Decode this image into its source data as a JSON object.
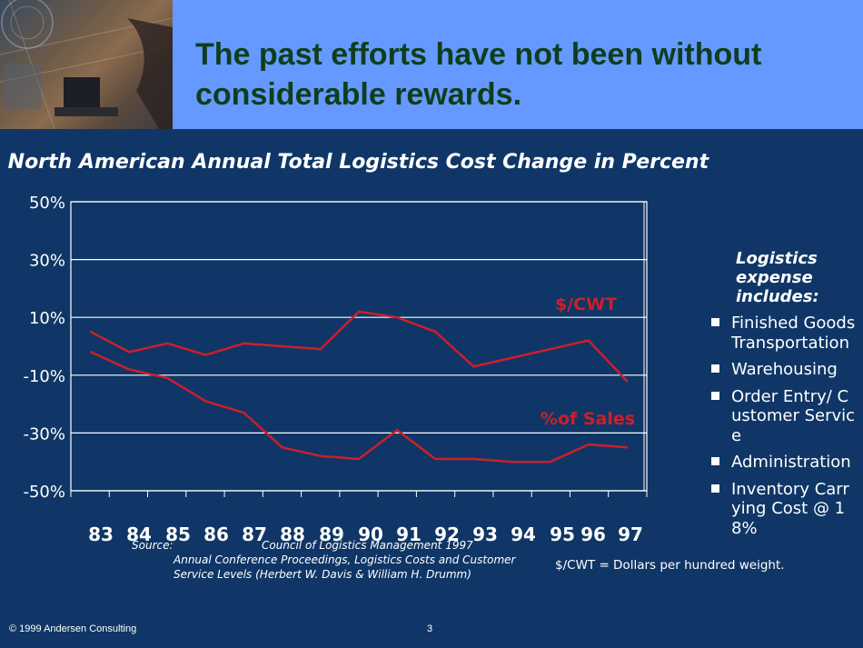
{
  "header": {
    "title": "The past efforts have not been without considerable rewards."
  },
  "chart_data": {
    "type": "line",
    "title": "– North American Annual Total Logistics Cost Change in Percent",
    "categories": [
      "83",
      "84",
      "85",
      "86",
      "87",
      "88",
      "89",
      "90",
      "91",
      "92",
      "93",
      "94",
      "95",
      "96",
      "97"
    ],
    "y_tick_labels": [
      "50%",
      "30%",
      "10%",
      "-10%",
      "-30%",
      "-50%"
    ],
    "y_ticks": [
      50,
      30,
      10,
      -10,
      -30,
      -50
    ],
    "ylim": [
      -50,
      50
    ],
    "grid": true,
    "series": [
      {
        "name": "$/CWT",
        "values": [
          5,
          -2,
          1,
          -3,
          1,
          0,
          -1,
          12,
          10,
          5,
          -7,
          -4,
          -1,
          2,
          -12
        ]
      },
      {
        "name": "%of Sales",
        "values": [
          -2,
          -8,
          -11,
          -19,
          -23,
          -35,
          -38,
          -39,
          -29,
          -39,
          -39,
          -40,
          -40,
          -34,
          -35
        ]
      }
    ],
    "colors": {
      "line": "#cc1f2a",
      "grid": "#ffffff",
      "plot_bg": "#0f3666"
    }
  },
  "legend": {
    "title": "Logistics expense includes:",
    "items": [
      "Finished Goods Transportation",
      "Warehousing",
      "Order Entry/ Customer Service",
      "Administration",
      "Inventory Carrying Cost @ 18%"
    ]
  },
  "source": {
    "label": "Source:",
    "text_line1": "Council of Logistics Management 1997",
    "text_rest": "Annual Conference Proceedings, Logistics Costs and Customer Service Levels (Herbert W. Davis & William H. Drumm)"
  },
  "note": "$/CWT = Dollars per hundred weight.",
  "footer": {
    "copyright": "© 1999 Andersen Consulting",
    "page_number": "3"
  }
}
